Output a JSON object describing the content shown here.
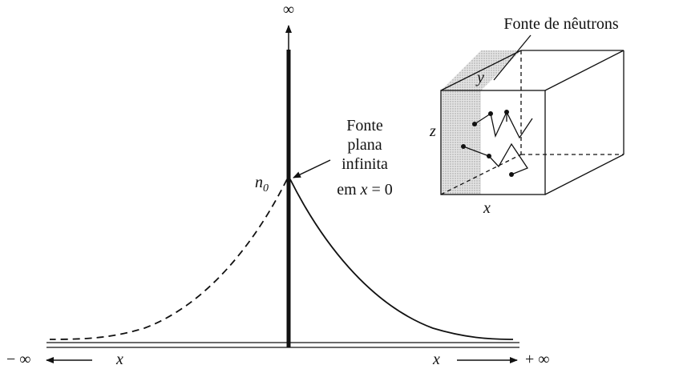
{
  "axis": {
    "top_label": "∞",
    "left_label": "− ∞",
    "right_label": "+ ∞",
    "left_x": "x",
    "right_x": "x"
  },
  "peak_label": {
    "base": "n",
    "subscript": "0"
  },
  "source_label": {
    "lines": [
      "Fonte",
      "plana",
      "infinita"
    ],
    "last_prefix": "em",
    "last_var": "x",
    "last_suffix": "= 0"
  },
  "inset": {
    "title": "Fonte de nêutrons",
    "x": "x",
    "y": "y",
    "z": "z"
  }
}
